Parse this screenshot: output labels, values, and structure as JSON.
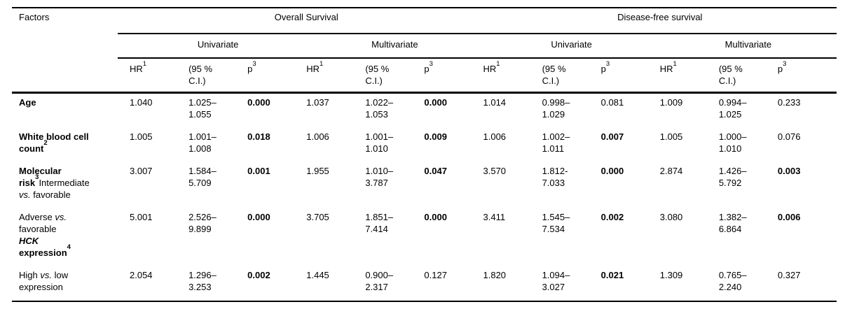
{
  "table": {
    "factors_label": "Factors",
    "group_headers": [
      "Overall Survival",
      "Disease-free survival"
    ],
    "subgroup_headers": [
      "Univariate",
      "Multivariate",
      "Univariate",
      "Multivariate"
    ],
    "column_header": {
      "hr": "HR",
      "hr_sup": "1",
      "ci": "(95 %\nC.I.)",
      "p": "p",
      "p_sup": "3"
    },
    "rows": [
      {
        "label_parts": [
          {
            "t": "Age",
            "s": "b"
          }
        ],
        "cells": [
          {
            "v": "1.040"
          },
          {
            "v": "1.025–\n1.055"
          },
          {
            "v": "0.000",
            "b": true
          },
          {
            "v": "1.037"
          },
          {
            "v": "1.022–\n1.053"
          },
          {
            "v": "0.000",
            "b": true
          },
          {
            "v": "1.014"
          },
          {
            "v": "0.998–\n1.029"
          },
          {
            "v": "0.081"
          },
          {
            "v": "1.009"
          },
          {
            "v": "0.994–\n1.025"
          },
          {
            "v": "0.233"
          }
        ]
      },
      {
        "label_parts": [
          {
            "t": "White blood cell",
            "s": "b"
          },
          {
            "t": "\n"
          },
          {
            "t": "count",
            "s": "b"
          },
          {
            "t": "2",
            "s": "bsup"
          }
        ],
        "cells": [
          {
            "v": "1.005"
          },
          {
            "v": "1.001–\n1.008"
          },
          {
            "v": "0.018",
            "b": true
          },
          {
            "v": "1.006"
          },
          {
            "v": "1.001–\n1.010"
          },
          {
            "v": "0.009",
            "b": true
          },
          {
            "v": "1.006"
          },
          {
            "v": "1.002–\n1.011"
          },
          {
            "v": "0.007",
            "b": true
          },
          {
            "v": "1.005"
          },
          {
            "v": "1.000–\n1.010"
          },
          {
            "v": "0.076"
          }
        ]
      },
      {
        "label_parts": [
          {
            "t": "Molecular",
            "s": "b"
          },
          {
            "t": "\n"
          },
          {
            "t": "risk",
            "s": "b"
          },
          {
            "t": "3",
            "s": "bsup"
          },
          {
            "t": "Intermediate"
          },
          {
            "t": "\n"
          },
          {
            "t": "vs.",
            "s": "i"
          },
          {
            "t": " favorable"
          }
        ],
        "cells": [
          {
            "v": "3.007"
          },
          {
            "v": "1.584–\n5.709"
          },
          {
            "v": "0.001",
            "b": true
          },
          {
            "v": "1.955"
          },
          {
            "v": "1.010–\n3.787"
          },
          {
            "v": "0.047",
            "b": true
          },
          {
            "v": "3.570"
          },
          {
            "v": "1.812-\n7.033"
          },
          {
            "v": "0.000",
            "b": true
          },
          {
            "v": "2.874"
          },
          {
            "v": "1.426–\n5.792"
          },
          {
            "v": "0.003",
            "b": true
          }
        ]
      },
      {
        "label_parts": [
          {
            "t": "Adverse "
          },
          {
            "t": "vs.",
            "s": "i"
          },
          {
            "t": "\n"
          },
          {
            "t": "favorable"
          },
          {
            "t": "\n"
          },
          {
            "t": "HCK",
            "s": "bi"
          },
          {
            "t": "\n"
          },
          {
            "t": "expression",
            "s": "b"
          },
          {
            "t": "4",
            "s": "bsup"
          }
        ],
        "cells": [
          {
            "v": "5.001"
          },
          {
            "v": "2.526–\n9.899"
          },
          {
            "v": "0.000",
            "b": true
          },
          {
            "v": "3.705"
          },
          {
            "v": "1.851–\n7.414"
          },
          {
            "v": "0.000",
            "b": true
          },
          {
            "v": "3.411"
          },
          {
            "v": "1.545–\n7.534"
          },
          {
            "v": "0.002",
            "b": true
          },
          {
            "v": "3.080"
          },
          {
            "v": "1.382–\n6.864"
          },
          {
            "v": "0.006",
            "b": true
          }
        ]
      },
      {
        "label_parts": [
          {
            "t": "High "
          },
          {
            "t": "vs.",
            "s": "i"
          },
          {
            "t": " low"
          },
          {
            "t": "\n"
          },
          {
            "t": "expression"
          }
        ],
        "cells": [
          {
            "v": "2.054"
          },
          {
            "v": "1.296–\n3.253"
          },
          {
            "v": "0.002",
            "b": true
          },
          {
            "v": "1.445"
          },
          {
            "v": "0.900–\n2.317"
          },
          {
            "v": "0.127"
          },
          {
            "v": "1.820"
          },
          {
            "v": "1.094–\n3.027"
          },
          {
            "v": "0.021",
            "b": true
          },
          {
            "v": "1.309"
          },
          {
            "v": "0.765–\n2.240"
          },
          {
            "v": "0.327"
          }
        ]
      }
    ]
  }
}
